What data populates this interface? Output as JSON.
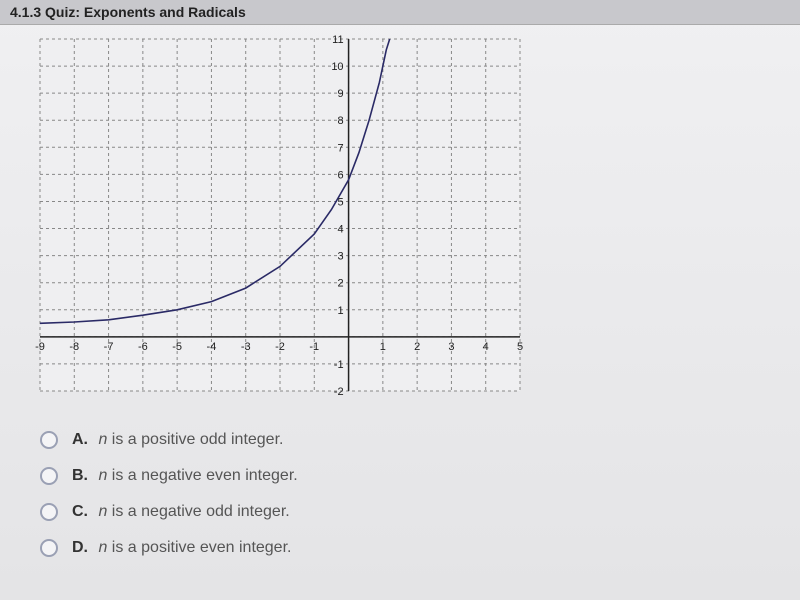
{
  "title": "4.1.3  Quiz:  Exponents and Radicals",
  "chart": {
    "type": "line",
    "xlim": [
      -9,
      5
    ],
    "ylim": [
      -2,
      11
    ],
    "xtick_step": 1,
    "ytick_step": 1,
    "grid_color": "#888888",
    "grid_dash": "3 3",
    "axis_color": "#222222",
    "curve_color": "#2a2a66",
    "background_color": "#efeff1",
    "tick_fontsize": 11,
    "y_labels_left_of_axis": true,
    "curve_points": [
      {
        "x": -9.0,
        "y": 0.5
      },
      {
        "x": -8.0,
        "y": 0.55
      },
      {
        "x": -7.0,
        "y": 0.63
      },
      {
        "x": -6.0,
        "y": 0.8
      },
      {
        "x": -5.0,
        "y": 1.0
      },
      {
        "x": -4.0,
        "y": 1.3
      },
      {
        "x": -3.0,
        "y": 1.8
      },
      {
        "x": -2.0,
        "y": 2.6
      },
      {
        "x": -1.0,
        "y": 3.8
      },
      {
        "x": -0.5,
        "y": 4.7
      },
      {
        "x": 0.0,
        "y": 5.8
      },
      {
        "x": 0.3,
        "y": 6.8
      },
      {
        "x": 0.6,
        "y": 8.0
      },
      {
        "x": 0.9,
        "y": 9.4
      },
      {
        "x": 1.1,
        "y": 10.6
      },
      {
        "x": 1.2,
        "y": 11.0
      }
    ]
  },
  "options": [
    {
      "letter": "A.",
      "text_pre": "n",
      "text_post": " is a positive odd integer."
    },
    {
      "letter": "B.",
      "text_pre": "n",
      "text_post": " is a negative even integer."
    },
    {
      "letter": "C.",
      "text_pre": "n",
      "text_post": " is a negative odd integer."
    },
    {
      "letter": "D.",
      "text_pre": "n",
      "text_post": " is a positive even integer."
    }
  ]
}
